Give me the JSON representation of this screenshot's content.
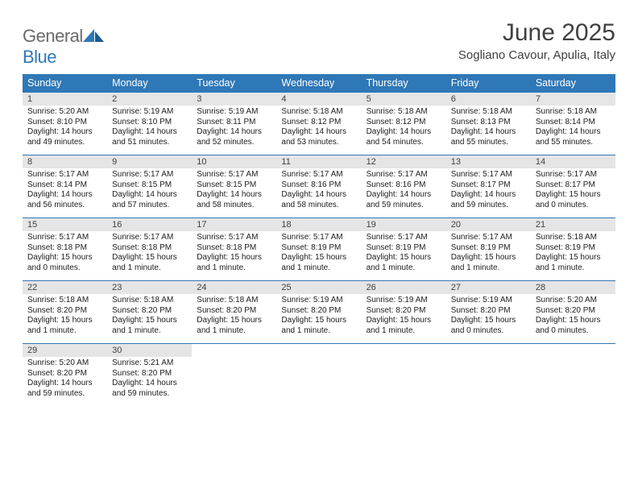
{
  "brand": {
    "word1": "General",
    "word2": "Blue"
  },
  "title": "June 2025",
  "location": "Sogliano Cavour, Apulia, Italy",
  "colors": {
    "brand_blue": "#2f78b7",
    "text_gray": "#404040",
    "cell_header_bg": "#e5e5e5",
    "page_bg": "#ffffff"
  },
  "layout": {
    "columns": 7,
    "rows": 5,
    "start_offset": 0
  },
  "dayNames": [
    "Sunday",
    "Monday",
    "Tuesday",
    "Wednesday",
    "Thursday",
    "Friday",
    "Saturday"
  ],
  "days": [
    {
      "n": 1,
      "sr": "5:20 AM",
      "ss": "8:10 PM",
      "dl": "14 hours and 49 minutes."
    },
    {
      "n": 2,
      "sr": "5:19 AM",
      "ss": "8:10 PM",
      "dl": "14 hours and 51 minutes."
    },
    {
      "n": 3,
      "sr": "5:19 AM",
      "ss": "8:11 PM",
      "dl": "14 hours and 52 minutes."
    },
    {
      "n": 4,
      "sr": "5:18 AM",
      "ss": "8:12 PM",
      "dl": "14 hours and 53 minutes."
    },
    {
      "n": 5,
      "sr": "5:18 AM",
      "ss": "8:12 PM",
      "dl": "14 hours and 54 minutes."
    },
    {
      "n": 6,
      "sr": "5:18 AM",
      "ss": "8:13 PM",
      "dl": "14 hours and 55 minutes."
    },
    {
      "n": 7,
      "sr": "5:18 AM",
      "ss": "8:14 PM",
      "dl": "14 hours and 55 minutes."
    },
    {
      "n": 8,
      "sr": "5:17 AM",
      "ss": "8:14 PM",
      "dl": "14 hours and 56 minutes."
    },
    {
      "n": 9,
      "sr": "5:17 AM",
      "ss": "8:15 PM",
      "dl": "14 hours and 57 minutes."
    },
    {
      "n": 10,
      "sr": "5:17 AM",
      "ss": "8:15 PM",
      "dl": "14 hours and 58 minutes."
    },
    {
      "n": 11,
      "sr": "5:17 AM",
      "ss": "8:16 PM",
      "dl": "14 hours and 58 minutes."
    },
    {
      "n": 12,
      "sr": "5:17 AM",
      "ss": "8:16 PM",
      "dl": "14 hours and 59 minutes."
    },
    {
      "n": 13,
      "sr": "5:17 AM",
      "ss": "8:17 PM",
      "dl": "14 hours and 59 minutes."
    },
    {
      "n": 14,
      "sr": "5:17 AM",
      "ss": "8:17 PM",
      "dl": "15 hours and 0 minutes."
    },
    {
      "n": 15,
      "sr": "5:17 AM",
      "ss": "8:18 PM",
      "dl": "15 hours and 0 minutes."
    },
    {
      "n": 16,
      "sr": "5:17 AM",
      "ss": "8:18 PM",
      "dl": "15 hours and 1 minute."
    },
    {
      "n": 17,
      "sr": "5:17 AM",
      "ss": "8:18 PM",
      "dl": "15 hours and 1 minute."
    },
    {
      "n": 18,
      "sr": "5:17 AM",
      "ss": "8:19 PM",
      "dl": "15 hours and 1 minute."
    },
    {
      "n": 19,
      "sr": "5:17 AM",
      "ss": "8:19 PM",
      "dl": "15 hours and 1 minute."
    },
    {
      "n": 20,
      "sr": "5:17 AM",
      "ss": "8:19 PM",
      "dl": "15 hours and 1 minute."
    },
    {
      "n": 21,
      "sr": "5:18 AM",
      "ss": "8:19 PM",
      "dl": "15 hours and 1 minute."
    },
    {
      "n": 22,
      "sr": "5:18 AM",
      "ss": "8:20 PM",
      "dl": "15 hours and 1 minute."
    },
    {
      "n": 23,
      "sr": "5:18 AM",
      "ss": "8:20 PM",
      "dl": "15 hours and 1 minute."
    },
    {
      "n": 24,
      "sr": "5:18 AM",
      "ss": "8:20 PM",
      "dl": "15 hours and 1 minute."
    },
    {
      "n": 25,
      "sr": "5:19 AM",
      "ss": "8:20 PM",
      "dl": "15 hours and 1 minute."
    },
    {
      "n": 26,
      "sr": "5:19 AM",
      "ss": "8:20 PM",
      "dl": "15 hours and 1 minute."
    },
    {
      "n": 27,
      "sr": "5:19 AM",
      "ss": "8:20 PM",
      "dl": "15 hours and 0 minutes."
    },
    {
      "n": 28,
      "sr": "5:20 AM",
      "ss": "8:20 PM",
      "dl": "15 hours and 0 minutes."
    },
    {
      "n": 29,
      "sr": "5:20 AM",
      "ss": "8:20 PM",
      "dl": "14 hours and 59 minutes."
    },
    {
      "n": 30,
      "sr": "5:21 AM",
      "ss": "8:20 PM",
      "dl": "14 hours and 59 minutes."
    }
  ],
  "labels": {
    "sunrise": "Sunrise:",
    "sunset": "Sunset:",
    "daylight": "Daylight:"
  }
}
